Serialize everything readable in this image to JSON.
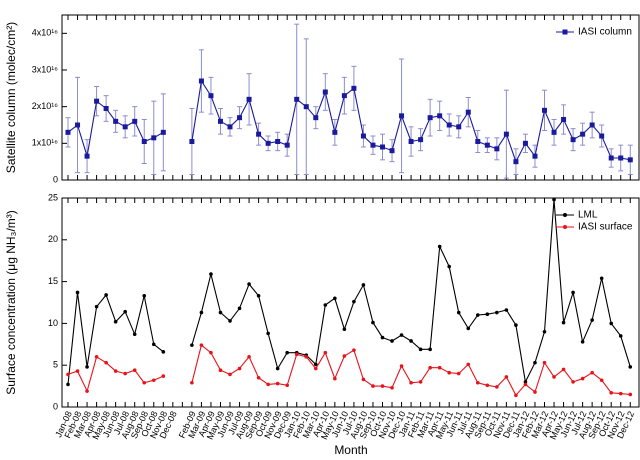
{
  "chart_data": {
    "type": "line",
    "xlabel": "Month",
    "categories": [
      "Jan-08",
      "Feb-08",
      "Mar-08",
      "Apr-08",
      "May-08",
      "Jun-08",
      "Jul-08",
      "Aug-08",
      "Sep-08",
      "Oct-08",
      "Nov-08",
      "Dec-08",
      null,
      "Feb-09",
      "Mar-09",
      "Apr-09",
      "May-09",
      "Jun-09",
      "Jul-09",
      "Aug-09",
      "Sep-09",
      "Oct-09",
      "Nov-09",
      "Dec-09",
      "Jan-10",
      "Feb-10",
      "Mar-10",
      "Apr-10",
      "May-10",
      "Jun-10",
      "Jul-10",
      "Aug-10",
      "Sep-10",
      "Oct-10",
      "Nov-10",
      "Dec-10",
      "Jan-11",
      "Feb-11",
      "Mar-11",
      "Apr-11",
      "May-11",
      "Jun-11",
      "Jul-11",
      "Aug-11",
      "Sep-11",
      "Oct-11",
      "Nov-11",
      "Dec-11",
      "Jan-12",
      "Feb-12",
      "Mar-12",
      "Apr-12",
      "May-12",
      "Jun-12",
      "Jul-12",
      "Aug-12",
      "Sep-12",
      "Oct-12",
      "Nov-12",
      "Dec-12"
    ],
    "panels": [
      {
        "ylabel": "Satellite column (molec/cm²)",
        "ylim": [
          0,
          4.5e+16
        ],
        "yticks": [
          {
            "value": 0,
            "label": "0"
          },
          {
            "value": 1e+16,
            "label": "1x10¹⁶"
          },
          {
            "value": 2e+16,
            "label": "2x10¹⁶"
          },
          {
            "value": 3e+16,
            "label": "3x10¹⁶"
          },
          {
            "value": 4e+16,
            "label": "4x10¹⁶"
          }
        ],
        "series": [
          {
            "name": "IASI column",
            "color": "#1a1a9c",
            "marker": "square",
            "error_color": "#8c8cd0",
            "values": [
              1.3e+16,
              1.5e+16,
              6500000000000000.0,
              2.15e+16,
              1.95e+16,
              1.6e+16,
              1.45e+16,
              1.6e+16,
              1.05e+16,
              1.15e+16,
              1.3e+16,
              null,
              null,
              1.05e+16,
              2.7e+16,
              2.3e+16,
              1.6e+16,
              1.45e+16,
              1.7e+16,
              2.2e+16,
              1.25e+16,
              1e+16,
              1.05e+16,
              9500000000000000.0,
              2.2e+16,
              2e+16,
              1.7e+16,
              2.4e+16,
              1.3e+16,
              2.3e+16,
              2.5e+16,
              1.2e+16,
              9500000000000000.0,
              9000000000000000.0,
              8000000000000000.0,
              1.75e+16,
              1.05e+16,
              1.1e+16,
              1.7e+16,
              1.75e+16,
              1.5e+16,
              1.45e+16,
              1.85e+16,
              1.05e+16,
              9500000000000000.0,
              8500000000000000.0,
              1.25e+16,
              5000000000000000.0,
              1e+16,
              6500000000000000.0,
              1.9e+16,
              1.3e+16,
              1.65e+16,
              1.1e+16,
              1.25e+16,
              1.5e+16,
              1.2e+16,
              6000000000000000.0,
              6000000000000000.0,
              5500000000000000.0
            ],
            "errors": [
              4000000000000000.0,
              1.3e+16,
              4500000000000000.0,
              4000000000000000.0,
              3500000000000000.0,
              3000000000000000.0,
              3000000000000000.0,
              4000000000000000.0,
              6000000000000000.0,
              1e+16,
              1.05e+16,
              null,
              null,
              9000000000000000.0,
              8500000000000000.0,
              5000000000000000.0,
              3500000000000000.0,
              2500000000000000.0,
              3000000000000000.0,
              7000000000000000.0,
              3000000000000000.0,
              2000000000000000.0,
              2500000000000000.0,
              3000000000000000.0,
              2.05e+16,
              1.85e+16,
              3000000000000000.0,
              5000000000000000.0,
              3500000000000000.0,
              5000000000000000.0,
              6000000000000000.0,
              3000000000000000.0,
              2500000000000000.0,
              3500000000000000.0,
              3000000000000000.0,
              1.55e+16,
              4000000000000000.0,
              3000000000000000.0,
              5000000000000000.0,
              4000000000000000.0,
              3000000000000000.0,
              3000000000000000.0,
              4000000000000000.0,
              3000000000000000.0,
              2000000000000000.0,
              3000000000000000.0,
              1.2e+16,
              3500000000000000.0,
              2500000000000000.0,
              3000000000000000.0,
              5500000000000000.0,
              3500000000000000.0,
              4000000000000000.0,
              3000000000000000.0,
              3000000000000000.0,
              3500000000000000.0,
              3000000000000000.0,
              2500000000000000.0,
              3500000000000000.0,
              4000000000000000.0
            ]
          }
        ]
      },
      {
        "ylabel": "Surface concentration (μg NH₃/m³)",
        "ylim": [
          0,
          25
        ],
        "yticks": [
          0,
          5,
          10,
          15,
          20,
          25
        ],
        "series": [
          {
            "name": "LML",
            "color": "#000000",
            "marker": "circle",
            "values": [
              2.7,
              13.7,
              4.8,
              12.0,
              13.4,
              10.2,
              11.4,
              8.7,
              13.3,
              7.5,
              6.6,
              null,
              null,
              7.4,
              11.3,
              15.9,
              11.3,
              10.3,
              11.8,
              14.7,
              13.3,
              8.8,
              4.6,
              6.5,
              6.5,
              6.2,
              5.1,
              12.2,
              13.0,
              9.3,
              12.6,
              14.6,
              10.1,
              8.3,
              7.9,
              8.6,
              7.9,
              6.9,
              6.9,
              19.2,
              16.8,
              11.3,
              9.4,
              11.0,
              11.1,
              11.3,
              11.6,
              9.8,
              3.0,
              5.3,
              9.0,
              24.8,
              10.1,
              13.7,
              7.8,
              10.4,
              15.4,
              10.0,
              8.5,
              4.8
            ]
          },
          {
            "name": "IASI surface",
            "color": "#e8121a",
            "marker": "circle",
            "values": [
              3.9,
              4.3,
              1.9,
              6.0,
              5.3,
              4.3,
              4.0,
              4.4,
              2.9,
              3.2,
              3.7,
              null,
              null,
              2.9,
              7.4,
              6.5,
              4.4,
              3.9,
              4.6,
              6.0,
              3.5,
              2.7,
              2.8,
              2.6,
              6.3,
              6.0,
              4.6,
              6.5,
              3.4,
              6.1,
              6.8,
              3.3,
              2.5,
              2.5,
              2.3,
              4.9,
              2.9,
              3.0,
              4.7,
              4.7,
              4.1,
              4.0,
              5.1,
              2.9,
              2.6,
              2.4,
              3.6,
              1.4,
              2.7,
              1.8,
              5.3,
              3.6,
              4.5,
              3.0,
              3.4,
              4.1,
              3.2,
              1.7,
              1.6,
              1.5
            ]
          }
        ]
      }
    ]
  }
}
